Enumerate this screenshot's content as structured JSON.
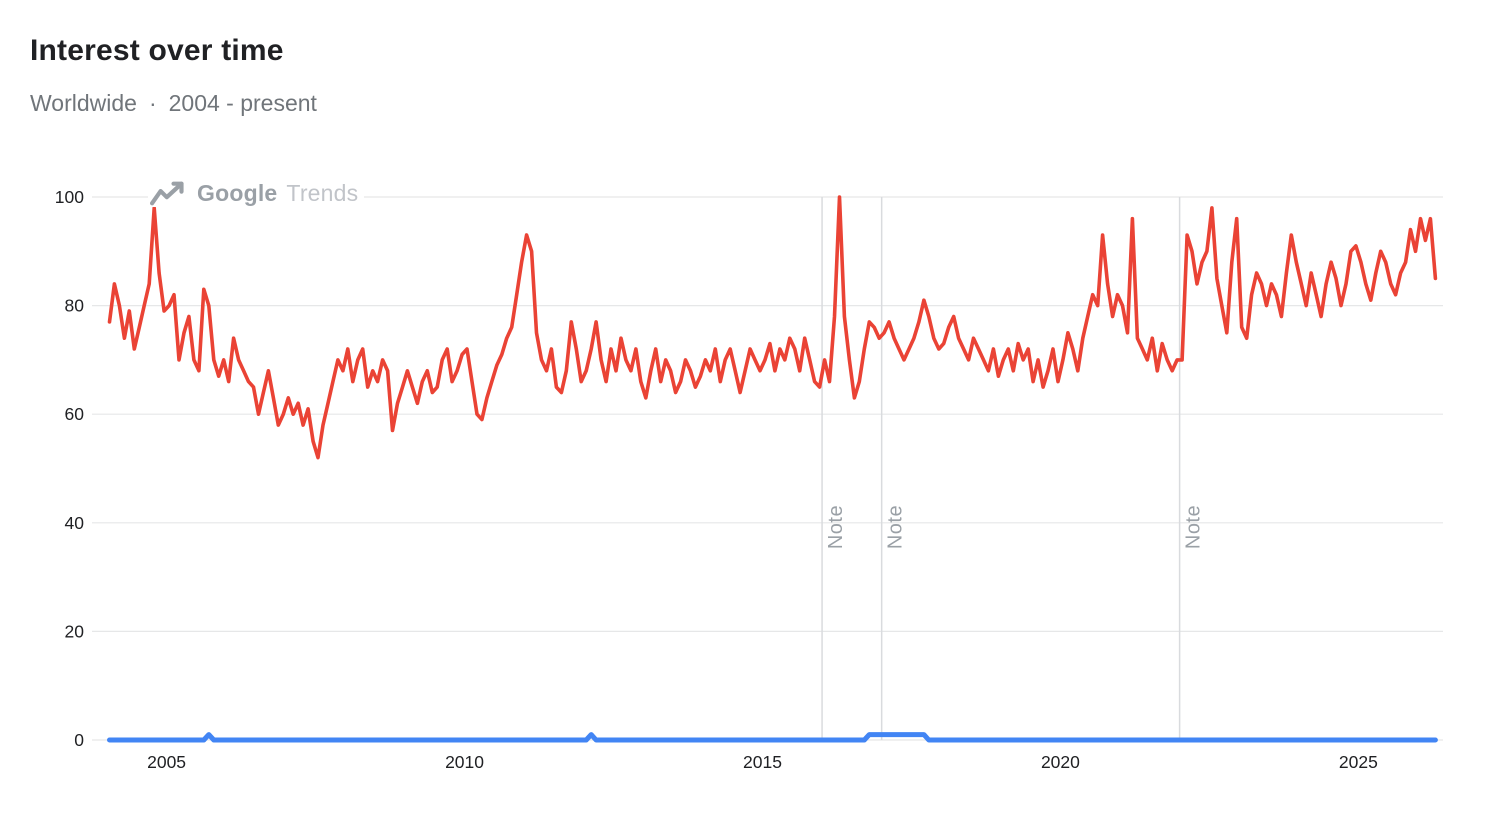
{
  "header": {
    "title": "Interest over time",
    "region": "Worldwide",
    "separator": "·",
    "range": "2004 - present"
  },
  "watermark": {
    "brand": "Google",
    "product": "Trends",
    "icon": "trending-up-icon"
  },
  "colors": {
    "series_red": "#ea4335",
    "series_blue": "#4285f4",
    "grid": "#e6e7e8",
    "note_line": "#d9dbde",
    "note_text": "#9aa0a6",
    "axis_text": "#202124",
    "watermark_primary": "#9aa0a6",
    "watermark_secondary": "#c1c4c9"
  },
  "chart_data": {
    "type": "line",
    "title": "Interest over time",
    "xlabel": "",
    "ylabel": "",
    "legend": "none",
    "x_axis": {
      "ticks": [
        "2005",
        "2010",
        "2015",
        "2020",
        "2025"
      ],
      "tick_years": [
        2005,
        2010,
        2015,
        2020,
        2025
      ],
      "range": [
        2004,
        2026.42
      ]
    },
    "y_axis": {
      "ticks": [
        0,
        20,
        40,
        60,
        80,
        100
      ],
      "range": [
        0,
        100
      ],
      "grid": true
    },
    "annotations": [
      {
        "label": "Note",
        "year": 2016
      },
      {
        "label": "Note",
        "year": 2017
      },
      {
        "label": "Note",
        "year": 2022
      }
    ],
    "series": [
      {
        "name": "series-red",
        "color": "#ea4335",
        "stroke_width": 3.6,
        "start": "2004-01",
        "interval": "month",
        "values": [
          77,
          84,
          80,
          74,
          79,
          72,
          76,
          80,
          84,
          98,
          86,
          79,
          80,
          82,
          70,
          75,
          78,
          70,
          68,
          83,
          80,
          70,
          67,
          70,
          66,
          74,
          70,
          68,
          66,
          65,
          60,
          64,
          68,
          63,
          58,
          60,
          63,
          60,
          62,
          58,
          61,
          55,
          52,
          58,
          62,
          66,
          70,
          68,
          72,
          66,
          70,
          72,
          65,
          68,
          66,
          70,
          68,
          57,
          62,
          65,
          68,
          65,
          62,
          66,
          68,
          64,
          65,
          70,
          72,
          66,
          68,
          71,
          72,
          66,
          60,
          59,
          63,
          66,
          69,
          71,
          74,
          76,
          82,
          88,
          93,
          90,
          75,
          70,
          68,
          72,
          65,
          64,
          68,
          77,
          72,
          66,
          68,
          72,
          77,
          70,
          66,
          72,
          68,
          74,
          70,
          68,
          72,
          66,
          63,
          68,
          72,
          66,
          70,
          68,
          64,
          66,
          70,
          68,
          65,
          67,
          70,
          68,
          72,
          66,
          70,
          72,
          68,
          64,
          68,
          72,
          70,
          68,
          70,
          73,
          68,
          72,
          70,
          74,
          72,
          68,
          74,
          70,
          66,
          65,
          70,
          66,
          78,
          100,
          78,
          70,
          63,
          66,
          72,
          77,
          76,
          74,
          75,
          77,
          74,
          72,
          70,
          72,
          74,
          77,
          81,
          78,
          74,
          72,
          73,
          76,
          78,
          74,
          72,
          70,
          74,
          72,
          70,
          68,
          72,
          67,
          70,
          72,
          68,
          73,
          70,
          72,
          66,
          70,
          65,
          68,
          72,
          66,
          70,
          75,
          72,
          68,
          74,
          78,
          82,
          80,
          93,
          84,
          78,
          82,
          80,
          75,
          96,
          74,
          72,
          70,
          74,
          68,
          73,
          70,
          68,
          70,
          70,
          93,
          90,
          84,
          88,
          90,
          98,
          85,
          80,
          75,
          88,
          96,
          76,
          74,
          82,
          86,
          84,
          80,
          84,
          82,
          78,
          86,
          93,
          88,
          84,
          80,
          86,
          82,
          78,
          84,
          88,
          85,
          80,
          84,
          90,
          91,
          88,
          84,
          81,
          86,
          90,
          88,
          84,
          82,
          86,
          88,
          94,
          90,
          96,
          92,
          96,
          85
        ]
      },
      {
        "name": "series-blue",
        "color": "#4285f4",
        "stroke_width": 5,
        "start": "2004-01",
        "interval": "month",
        "values": [
          0,
          0,
          0,
          0,
          0,
          0,
          0,
          0,
          0,
          0,
          0,
          0,
          0,
          0,
          0,
          0,
          0,
          0,
          0,
          0,
          1,
          0,
          0,
          0,
          0,
          0,
          0,
          0,
          0,
          0,
          0,
          0,
          0,
          0,
          0,
          0,
          0,
          0,
          0,
          0,
          0,
          0,
          0,
          0,
          0,
          0,
          0,
          0,
          0,
          0,
          0,
          0,
          0,
          0,
          0,
          0,
          0,
          0,
          0,
          0,
          0,
          0,
          0,
          0,
          0,
          0,
          0,
          0,
          0,
          0,
          0,
          0,
          0,
          0,
          0,
          0,
          0,
          0,
          0,
          0,
          0,
          0,
          0,
          0,
          0,
          0,
          0,
          0,
          0,
          0,
          0,
          0,
          0,
          0,
          0,
          0,
          0,
          1,
          0,
          0,
          0,
          0,
          0,
          0,
          0,
          0,
          0,
          0,
          0,
          0,
          0,
          0,
          0,
          0,
          0,
          0,
          0,
          0,
          0,
          0,
          0,
          0,
          0,
          0,
          0,
          0,
          0,
          0,
          0,
          0,
          0,
          0,
          0,
          0,
          0,
          0,
          0,
          0,
          0,
          0,
          0,
          0,
          0,
          0,
          0,
          0,
          0,
          0,
          0,
          0,
          0,
          0,
          0,
          1,
          1,
          1,
          1,
          1,
          1,
          1,
          1,
          1,
          1,
          1,
          1,
          0,
          0,
          0,
          0,
          0,
          0,
          0,
          0,
          0,
          0,
          0,
          0,
          0,
          0,
          0,
          0,
          0,
          0,
          0,
          0,
          0,
          0,
          0,
          0,
          0,
          0,
          0,
          0,
          0,
          0,
          0,
          0,
          0,
          0,
          0,
          0,
          0,
          0,
          0,
          0,
          0,
          0,
          0,
          0,
          0,
          0,
          0,
          0,
          0,
          0,
          0,
          0,
          0,
          0,
          0,
          0,
          0,
          0,
          0,
          0,
          0,
          0,
          0,
          0,
          0,
          0,
          0,
          0,
          0,
          0,
          0,
          0,
          0,
          0,
          0,
          0,
          0,
          0,
          0,
          0,
          0,
          0,
          0,
          0,
          0,
          0,
          0,
          0,
          0,
          0,
          0,
          0,
          0,
          0,
          0,
          0,
          0,
          0,
          0,
          0,
          0,
          0,
          0
        ]
      }
    ]
  }
}
